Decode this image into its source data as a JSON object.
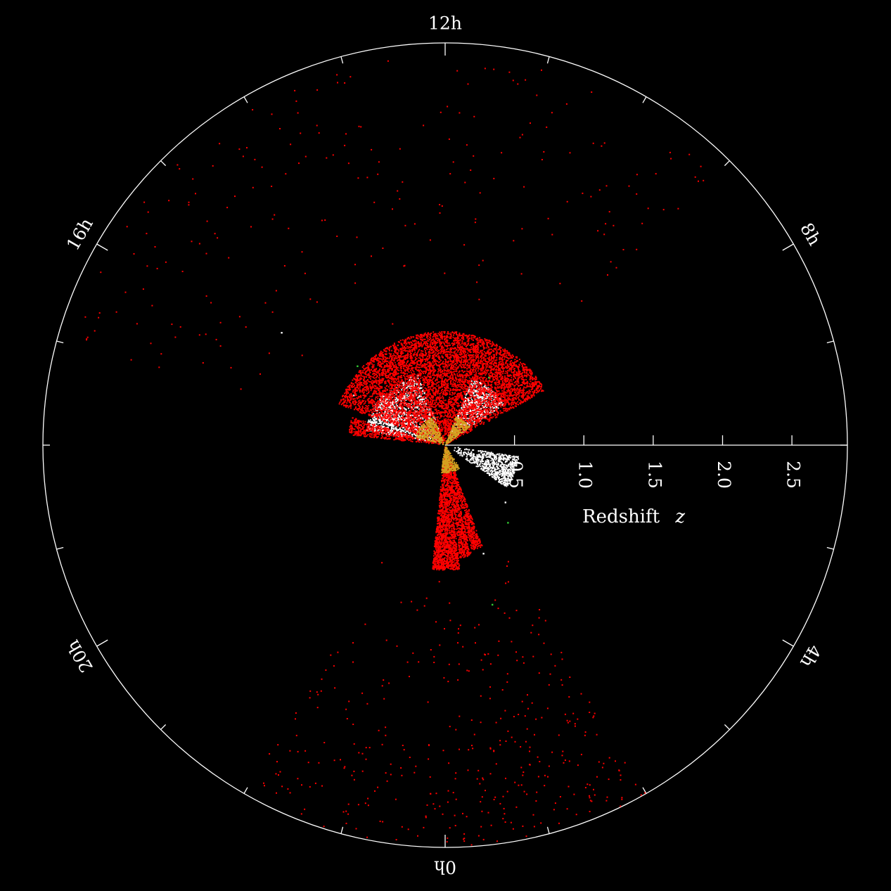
{
  "chart_data": {
    "type": "scatter",
    "projection": "polar-wedge",
    "xlabel": "Redshift",
    "xlabel_var": "z",
    "r_range": [
      0,
      2.9
    ],
    "r_ticks": [
      0.5,
      1.0,
      1.5,
      2.0,
      2.5
    ],
    "r_tick_labels": [
      "0.5",
      "1.0",
      "1.5",
      "2.0",
      "2.5"
    ],
    "angle_unit": "hours of right ascension",
    "hour_labels": [
      {
        "hour": 0,
        "text": "0h"
      },
      {
        "hour": 4,
        "text": "4h"
      },
      {
        "hour": 8,
        "text": "8h"
      },
      {
        "hour": 12,
        "text": "12h"
      },
      {
        "hour": 16,
        "text": "16h"
      },
      {
        "hour": 20,
        "text": "20h"
      }
    ],
    "hour_tick_step": 1,
    "grid": false,
    "legend": "none",
    "background": "#000000",
    "axis_color": "#ffffff",
    "series": [
      {
        "color": "#ffffff",
        "regions": [
          {
            "ra_from": 8.3,
            "ra_to": 10.5,
            "z_min": 0.05,
            "z_max": 0.52,
            "points": 700
          },
          {
            "ra_from": 13.4,
            "ra_to": 15.4,
            "z_min": 0.05,
            "z_max": 0.55,
            "points": 450
          },
          {
            "ra_from": 15.4,
            "ra_to": 17.3,
            "z_min": 0.05,
            "z_max": 0.58,
            "points": 800
          },
          {
            "ra_from": 3.7,
            "ra_to": 5.4,
            "z_min": 0.05,
            "z_max": 0.54,
            "points": 700
          }
        ],
        "sparse": [
          [
            15.0,
            0.55
          ],
          [
            15.7,
            1.43
          ],
          [
            16.1,
            0.75
          ],
          [
            1.3,
            0.83
          ],
          [
            3.1,
            0.6
          ]
        ]
      },
      {
        "color": "#ff0000",
        "regions": [
          {
            "ra_from": 7.9,
            "ra_to": 16.6,
            "z_min": 0.0,
            "z_max": 0.82,
            "points": 6500
          },
          {
            "ra_from": 16.9,
            "ra_to": 17.6,
            "z_min": 0.0,
            "z_max": 0.7,
            "points": 450
          },
          {
            "ra_from": 23.6,
            "ra_to": 24.0,
            "z_min": 0.0,
            "z_max": 0.9,
            "points": 700
          },
          {
            "ra_from": 0.0,
            "ra_to": 0.45,
            "z_min": 0.0,
            "z_max": 0.9,
            "points": 700
          },
          {
            "ra_from": 0.5,
            "ra_to": 0.9,
            "z_min": 0.0,
            "z_max": 0.82,
            "points": 500
          },
          {
            "ra_from": 0.95,
            "ra_to": 1.35,
            "z_min": 0.0,
            "z_max": 0.78,
            "points": 450
          },
          {
            "ra_from": 22.0,
            "ra_to": 24.0,
            "z_min": 0.8,
            "z_max": 2.9,
            "points": 140
          },
          {
            "ra_from": 0.0,
            "ra_to": 2.0,
            "z_min": 0.8,
            "z_max": 2.9,
            "points": 240
          },
          {
            "ra_from": 9.0,
            "ra_to": 17.0,
            "z_min": 0.8,
            "z_max": 2.8,
            "points": 220
          }
        ]
      },
      {
        "color": "#d4a020",
        "regions": [
          {
            "ra_from": 8.4,
            "ra_to": 10.6,
            "z_min": 0.0,
            "z_max": 0.22,
            "points": 260
          },
          {
            "ra_from": 13.5,
            "ra_to": 17.0,
            "z_min": 0.0,
            "z_max": 0.22,
            "points": 300
          },
          {
            "ra_from": 23.4,
            "ra_to": 2.2,
            "z_min": 0.0,
            "z_max": 0.2,
            "points": 280
          }
        ]
      },
      {
        "color": "#33cc33",
        "regions": [],
        "sparse": [
          [
            2.6,
            0.72
          ],
          [
            15.2,
            0.85
          ],
          [
            9.8,
            0.58
          ],
          [
            1.1,
            1.2
          ]
        ]
      }
    ]
  }
}
